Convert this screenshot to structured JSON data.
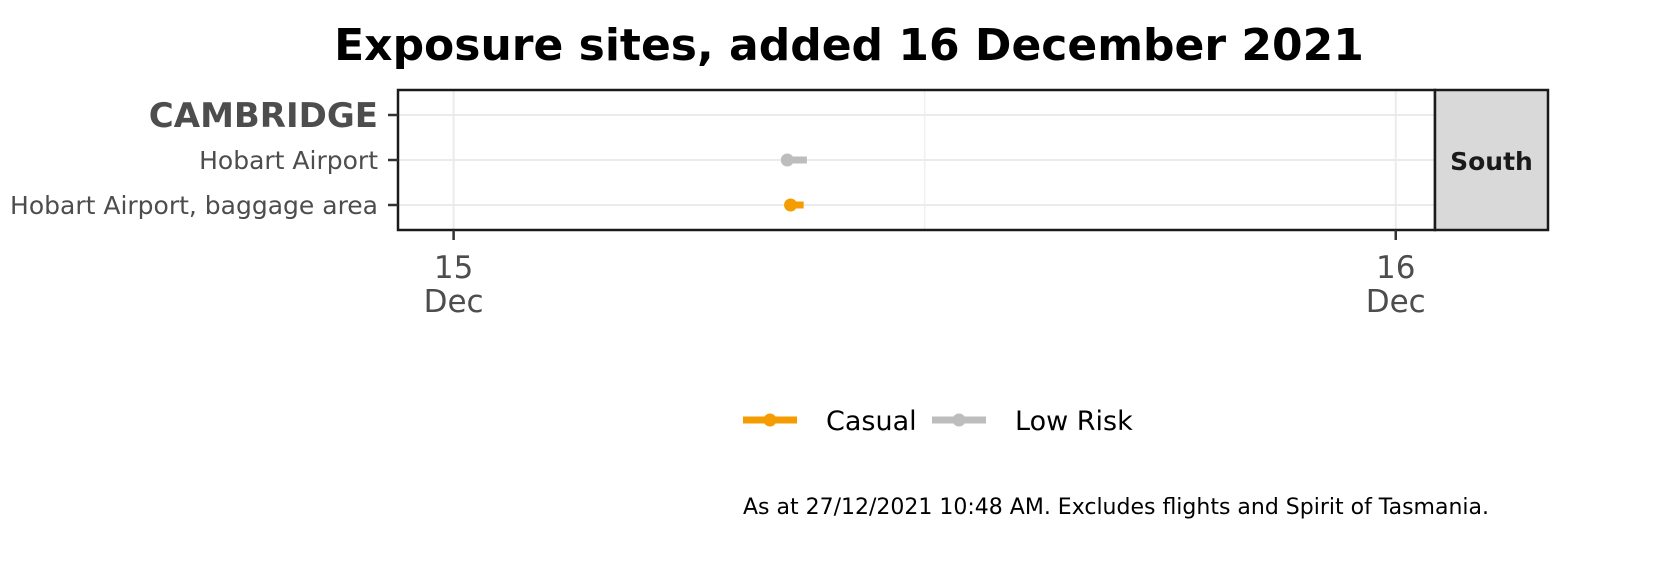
{
  "chart_data": {
    "type": "line",
    "title": "Exposure sites, added 16 December 2021",
    "xlabel": "",
    "ylabel": "",
    "x_axis": {
      "type": "date",
      "range": [
        "2021-12-14T22:35",
        "2021-12-16T01:00"
      ],
      "ticks": [
        {
          "value": "2021-12-15T00:00",
          "label": [
            "15",
            "Dec"
          ]
        },
        {
          "value": "2021-12-16T00:00",
          "label": [
            "16",
            "Dec"
          ]
        }
      ]
    },
    "categories": [
      {
        "label": "CAMBRIDGE",
        "group_header": true
      },
      {
        "label": "Hobart Airport",
        "group_header": false
      },
      {
        "label": "Hobart Airport, baggage area",
        "group_header": false
      }
    ],
    "facet_label": "South",
    "grid": true,
    "legend_position": "bottom",
    "series": [
      {
        "name": "Casual",
        "color": "#f59c00",
        "intervals": [
          {
            "category": "Hobart Airport, baggage area",
            "start": "2021-12-15T08:35",
            "end": "2021-12-15T08:55"
          }
        ]
      },
      {
        "name": "Low Risk",
        "color": "#bdbdbd",
        "intervals": [
          {
            "category": "Hobart Airport",
            "start": "2021-12-15T08:30",
            "end": "2021-12-15T09:00"
          }
        ]
      }
    ],
    "caption": "As at 27/12/2021 10:48 AM. Excludes flights and Spirit of Tasmania."
  }
}
